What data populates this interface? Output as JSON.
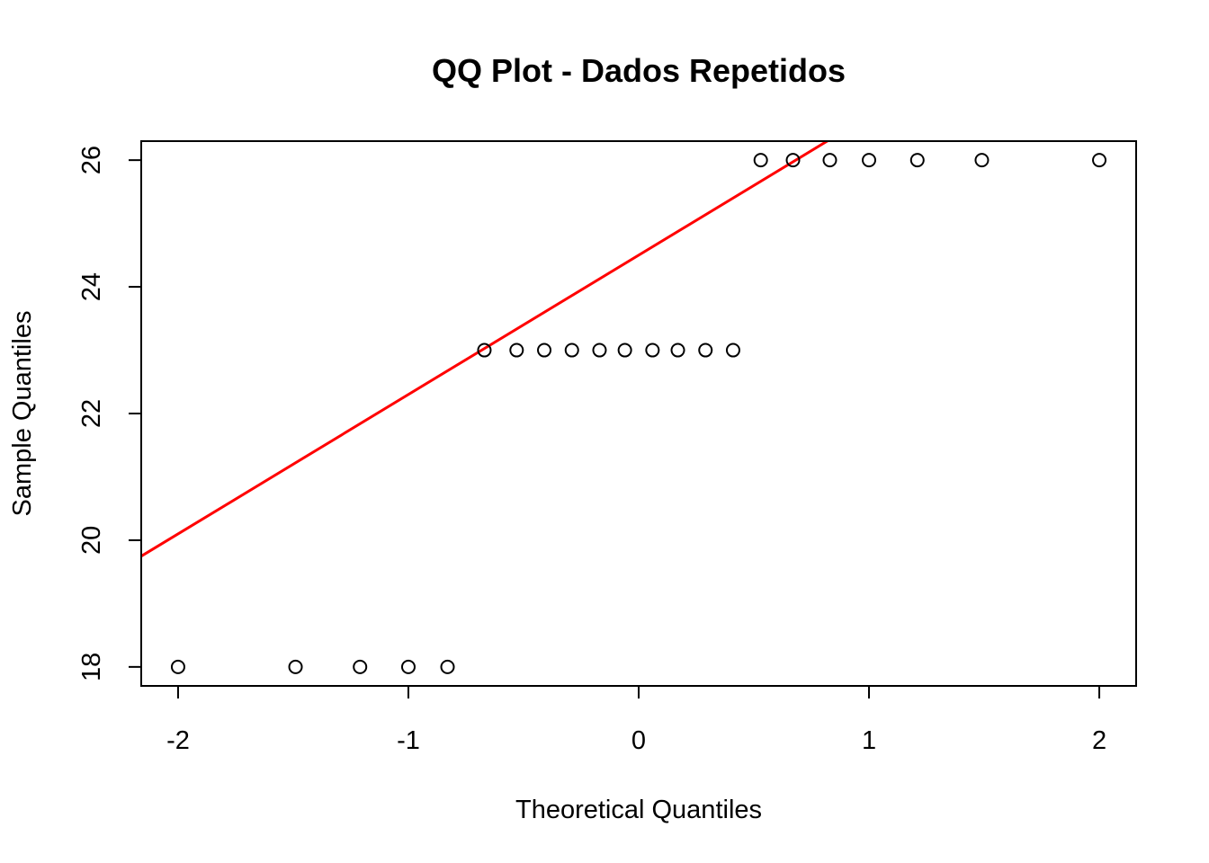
{
  "chart_data": {
    "type": "scatter",
    "title": "QQ Plot - Dados Repetidos",
    "xlabel": "Theoretical Quantiles",
    "ylabel": "Sample Quantiles",
    "xlim": [
      -2.16,
      2.16
    ],
    "ylim": [
      17.7,
      26.3
    ],
    "x_ticks": [
      -2,
      -1,
      0,
      1,
      2
    ],
    "x_tick_labels": [
      "-2",
      "-1",
      "0",
      "1",
      "2"
    ],
    "y_ticks": [
      18,
      20,
      22,
      24,
      26
    ],
    "y_tick_labels": [
      "18",
      "20",
      "22",
      "24",
      "26"
    ],
    "grid": false,
    "points": {
      "x": [
        -2.0,
        -1.49,
        -1.21,
        -1.0,
        -0.83,
        -0.67,
        -0.53,
        -0.41,
        -0.29,
        -0.17,
        -0.06,
        0.06,
        0.17,
        0.29,
        0.41,
        0.53,
        0.67,
        0.83,
        1.0,
        1.21,
        1.49,
        2.0
      ],
      "y": [
        18,
        18,
        18,
        18,
        18,
        23,
        23,
        23,
        23,
        23,
        23,
        23,
        23,
        23,
        23,
        26,
        26,
        26,
        26,
        26,
        26,
        26
      ]
    },
    "reference_line": {
      "intercept": 24.5,
      "slope": 2.2,
      "color": "#ff0000"
    },
    "point_color": "#000000"
  }
}
